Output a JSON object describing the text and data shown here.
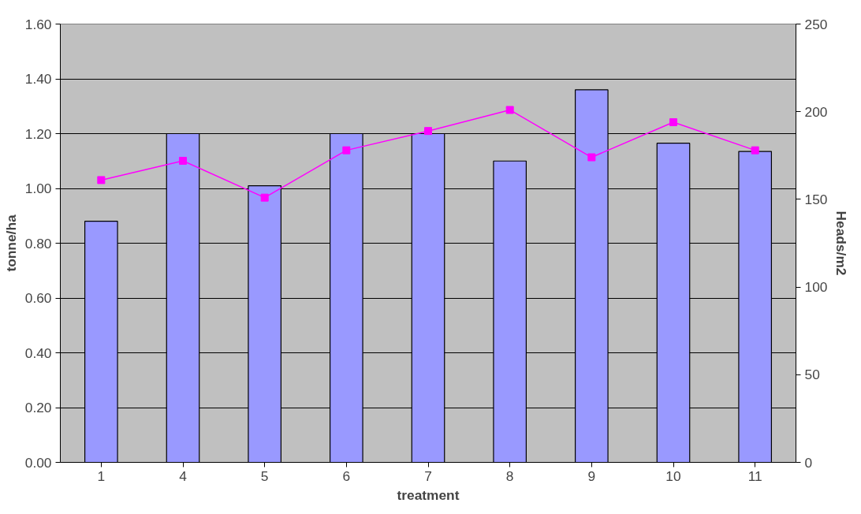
{
  "chart_data": {
    "type": "bar",
    "xlabel": "treatment",
    "ylabel": "tonne/ha",
    "y2label": "Heads/m2",
    "categories": [
      "1",
      "4",
      "5",
      "6",
      "7",
      "8",
      "9",
      "10",
      "11"
    ],
    "series": [
      {
        "color": "#9999ff",
        "values": [
          0.88,
          1.2,
          1.01,
          1.2,
          1.2,
          1.1,
          1.36,
          1.165,
          1.135
        ]
      },
      {
        "type": "line",
        "axis": "y2",
        "color": "#ff00ff",
        "marker": "square",
        "values": [
          161,
          172,
          151,
          178,
          189,
          201,
          174,
          194,
          178
        ]
      }
    ],
    "ylim": [
      0,
      1.6
    ],
    "yticks": [
      {
        "value": 0,
        "label": "0.00"
      },
      {
        "value": 0.2,
        "label": "0.20"
      },
      {
        "value": 0.4,
        "label": "0.40"
      },
      {
        "value": 0.6,
        "label": "0.60"
      },
      {
        "value": 0.8,
        "label": "0.80"
      },
      {
        "value": 1.0,
        "label": "1.00"
      },
      {
        "value": 1.2,
        "label": "1.20"
      },
      {
        "value": 1.4,
        "label": "1.40"
      },
      {
        "value": 1.6,
        "label": "1.60"
      }
    ],
    "y2lim": [
      0,
      250
    ],
    "y2ticks": [
      0,
      50,
      100,
      150,
      200,
      250
    ],
    "grid": "y"
  }
}
